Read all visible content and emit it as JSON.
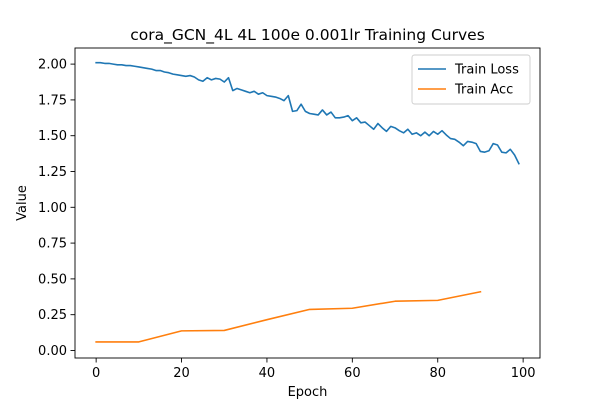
{
  "chart_data": {
    "type": "line",
    "title": "cora_GCN_4L  4L  100e  0.001lr  Training Curves",
    "xlabel": "Epoch",
    "ylabel": "Value",
    "xlim": [
      -4.95,
      103.95
    ],
    "ylim": [
      -0.0525,
      2.1125
    ],
    "xticks": [
      0,
      20,
      40,
      60,
      80,
      100
    ],
    "yticks": [
      0.0,
      0.25,
      0.5,
      0.75,
      1.0,
      1.25,
      1.5,
      1.75,
      2.0
    ],
    "xtick_labels": [
      "0",
      "20",
      "40",
      "60",
      "80",
      "100"
    ],
    "ytick_labels": [
      "0.00",
      "0.25",
      "0.50",
      "0.75",
      "1.00",
      "1.25",
      "1.50",
      "1.75",
      "2.00"
    ],
    "grid": false,
    "legend_position": "top-right",
    "series": [
      {
        "name": "Train Loss",
        "color": "#1f77b4",
        "x": [
          0,
          1,
          2,
          3,
          4,
          5,
          6,
          7,
          8,
          9,
          10,
          11,
          12,
          13,
          14,
          15,
          16,
          17,
          18,
          19,
          20,
          21,
          22,
          23,
          24,
          25,
          26,
          27,
          28,
          29,
          30,
          31,
          32,
          33,
          34,
          35,
          36,
          37,
          38,
          39,
          40,
          41,
          42,
          43,
          44,
          45,
          46,
          47,
          48,
          49,
          50,
          51,
          52,
          53,
          54,
          55,
          56,
          57,
          58,
          59,
          60,
          61,
          62,
          63,
          64,
          65,
          66,
          67,
          68,
          69,
          70,
          71,
          72,
          73,
          74,
          75,
          76,
          77,
          78,
          79,
          80,
          81,
          82,
          83,
          84,
          85,
          86,
          87,
          88,
          89,
          90,
          91,
          92,
          93,
          94,
          95,
          96,
          97,
          98,
          99
        ],
        "y": [
          2.01,
          2.01,
          2.005,
          2.005,
          2.0,
          1.995,
          1.995,
          1.99,
          1.99,
          1.985,
          1.98,
          1.975,
          1.97,
          1.965,
          1.955,
          1.955,
          1.945,
          1.94,
          1.93,
          1.925,
          1.92,
          1.915,
          1.92,
          1.91,
          1.89,
          1.88,
          1.905,
          1.89,
          1.9,
          1.895,
          1.875,
          1.905,
          1.815,
          1.83,
          1.82,
          1.81,
          1.8,
          1.81,
          1.79,
          1.8,
          1.78,
          1.775,
          1.77,
          1.76,
          1.745,
          1.78,
          1.67,
          1.675,
          1.72,
          1.67,
          1.655,
          1.65,
          1.645,
          1.68,
          1.645,
          1.665,
          1.625,
          1.625,
          1.63,
          1.64,
          1.605,
          1.625,
          1.59,
          1.595,
          1.57,
          1.545,
          1.585,
          1.555,
          1.53,
          1.565,
          1.555,
          1.535,
          1.52,
          1.545,
          1.51,
          1.52,
          1.5,
          1.525,
          1.5,
          1.53,
          1.51,
          1.535,
          1.505,
          1.48,
          1.475,
          1.455,
          1.43,
          1.46,
          1.455,
          1.445,
          1.39,
          1.385,
          1.395,
          1.445,
          1.435,
          1.385,
          1.38,
          1.405,
          1.365,
          1.305
        ]
      },
      {
        "name": "Train Acc",
        "color": "#ff7f0e",
        "x": [
          0,
          10,
          20,
          30,
          40,
          50,
          60,
          70,
          80,
          90
        ],
        "y": [
          0.06,
          0.06,
          0.137,
          0.14,
          0.215,
          0.287,
          0.295,
          0.344,
          0.35,
          0.41
        ]
      }
    ]
  }
}
